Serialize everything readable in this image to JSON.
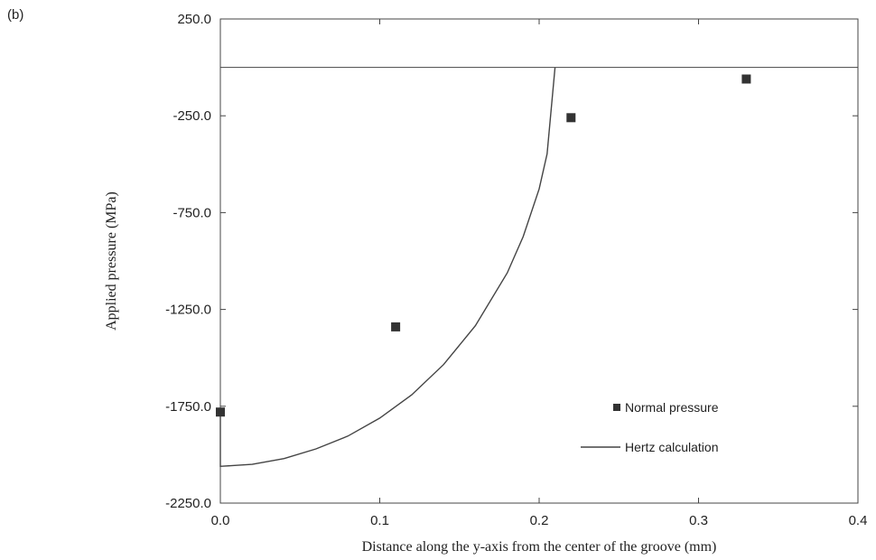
{
  "panel_label": "(b)",
  "chart_data": {
    "type": "scatter",
    "xlabel": "Distance along the y-axis from the center of the groove (mm)",
    "ylabel": "Applied pressure (MPa)",
    "xlim": [
      0.0,
      0.4
    ],
    "ylim": [
      -2250.0,
      250.0
    ],
    "x_ticks": [
      "0.0",
      "0.1",
      "0.2",
      "0.3",
      "0.4"
    ],
    "y_ticks": [
      "250.0",
      "-250.0",
      "-750.0",
      "-1250.0",
      "-1750.0",
      "-2250.0"
    ],
    "reference_line_y": 0,
    "grid": false,
    "legend_position": "lower-right",
    "series": [
      {
        "name": "Normal pressure",
        "type": "scatter",
        "marker": "square",
        "color": "#333333",
        "x": [
          0.0,
          0.11,
          0.22,
          0.33
        ],
        "y": [
          -1780,
          -1340,
          -260,
          -60
        ]
      },
      {
        "name": "Hertz calculation",
        "type": "line",
        "color": "#444444",
        "a": 0.21,
        "p0": -2060,
        "x": [
          0.0,
          0.02,
          0.04,
          0.06,
          0.08,
          0.1,
          0.12,
          0.14,
          0.16,
          0.18,
          0.19,
          0.2,
          0.205,
          0.21
        ],
        "y": [
          -2060,
          -2050,
          -2020,
          -1970,
          -1904,
          -1811,
          -1691,
          -1535,
          -1334,
          -1061,
          -874,
          -628,
          -447,
          0
        ]
      }
    ]
  }
}
